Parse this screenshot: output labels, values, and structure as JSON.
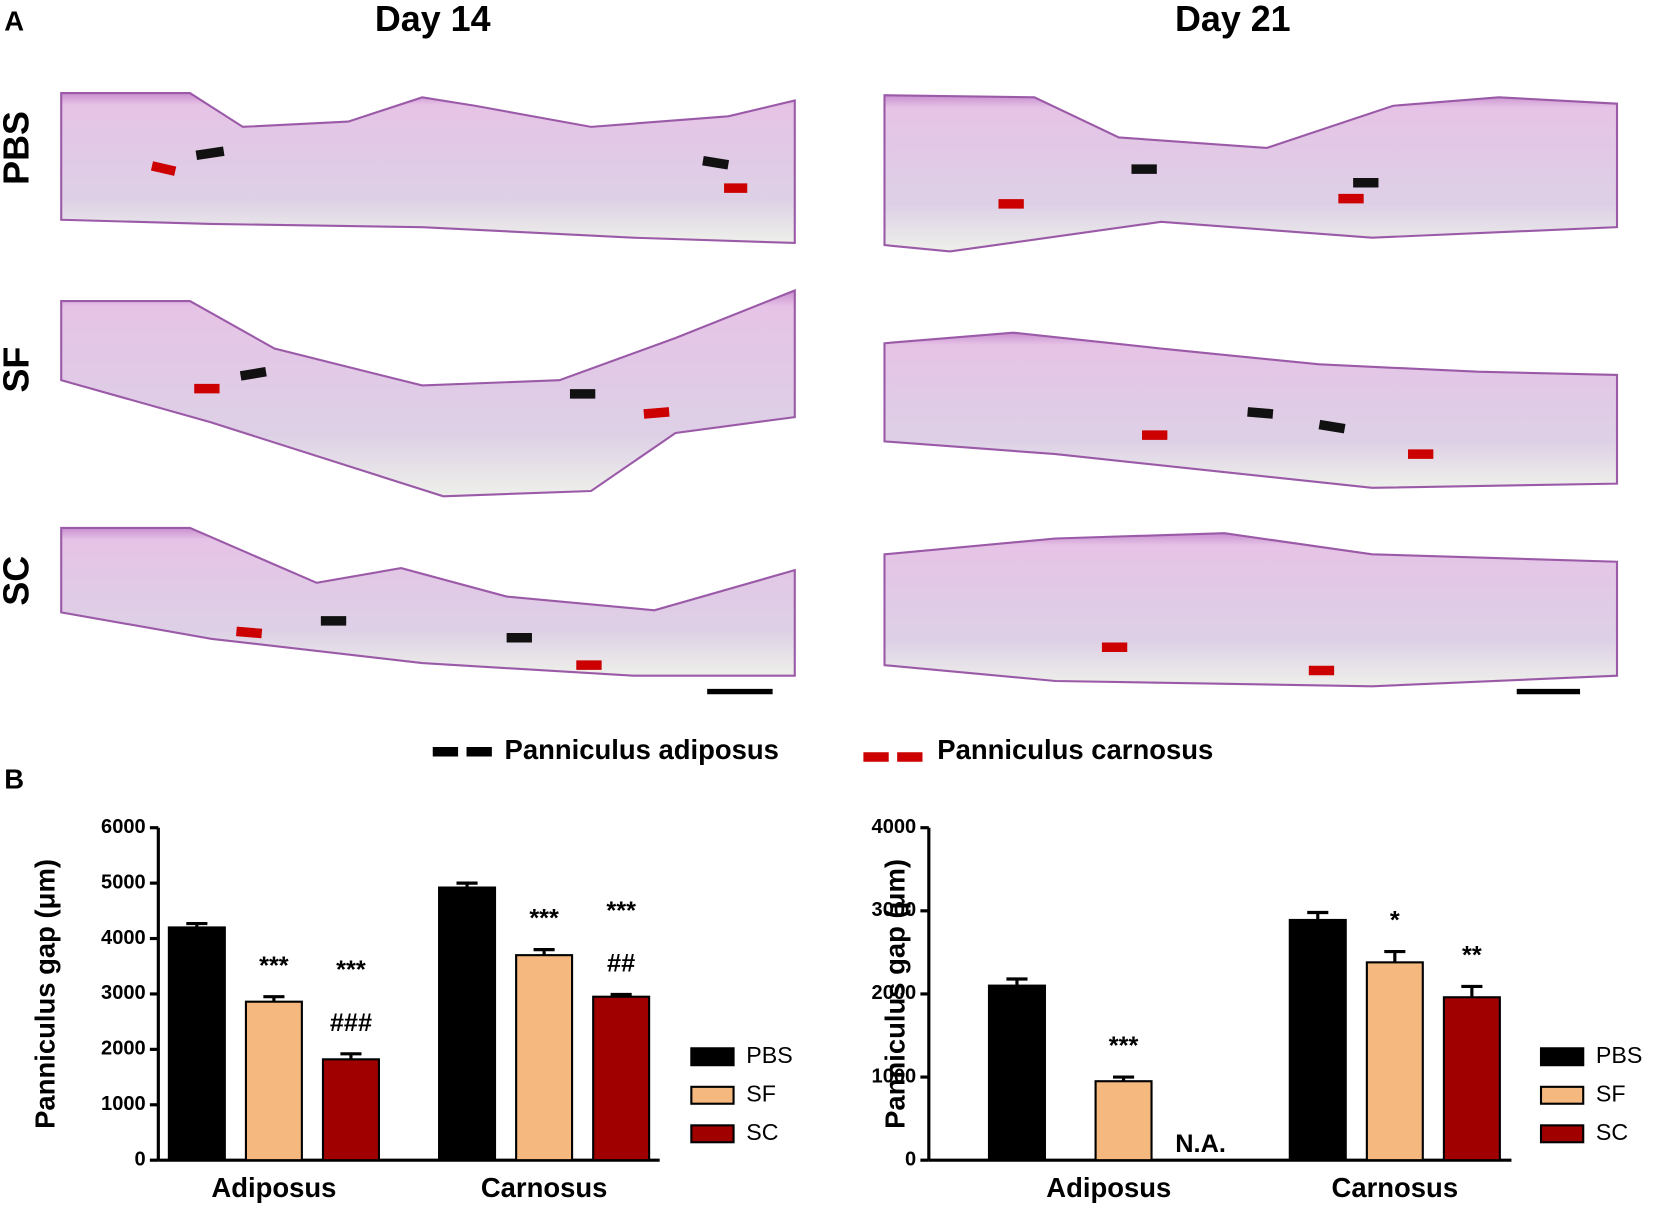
{
  "panel_labels": [
    "A",
    "B"
  ],
  "columns": [
    "Day 14",
    "Day 21"
  ],
  "rows": [
    "PBS",
    "SF",
    "SC"
  ],
  "arrow_legend": [
    "Panniculus adiposus",
    "Panniculus carnosus"
  ],
  "chart_data": [
    {
      "type": "bar",
      "ylabel": "Panniculus gap  (μm)",
      "categories": [
        "Adiposus",
        "Carnosus"
      ],
      "series": [
        {
          "name": "PBS",
          "color": "#000000",
          "values": [
            4200,
            4920
          ],
          "errors": [
            70,
            80
          ],
          "annotations": [
            [],
            []
          ]
        },
        {
          "name": "SF",
          "color": "#f5b97f",
          "values": [
            2860,
            3700
          ],
          "errors": [
            90,
            100
          ],
          "annotations": [
            [
              "***"
            ],
            [
              "***"
            ]
          ]
        },
        {
          "name": "SC",
          "color": "#a00000",
          "values": [
            1820,
            2950
          ],
          "errors": [
            100,
            40
          ],
          "annotations": [
            [
              "***",
              "###"
            ],
            [
              "***",
              "##"
            ]
          ]
        }
      ],
      "ylim": [
        0,
        6000
      ],
      "yticks": [
        0,
        1000,
        2000,
        3000,
        4000,
        5000,
        6000
      ]
    },
    {
      "type": "bar",
      "ylabel": "Panniculus gap  (μm)",
      "categories": [
        "Adiposus",
        "Carnosus"
      ],
      "series": [
        {
          "name": "PBS",
          "color": "#000000",
          "values": [
            2100,
            2890
          ],
          "errors": [
            80,
            90
          ],
          "annotations": [
            [],
            []
          ]
        },
        {
          "name": "SF",
          "color": "#f5b97f",
          "values": [
            950,
            2380
          ],
          "errors": [
            50,
            130
          ],
          "annotations": [
            [
              "***"
            ],
            [
              "*"
            ]
          ]
        },
        {
          "name": "SC",
          "color": "#a00000",
          "values": [
            null,
            1960
          ],
          "errors": [
            null,
            130
          ],
          "annotations": [
            [
              "N.A."
            ],
            [
              "**"
            ]
          ]
        }
      ],
      "ylim": [
        0,
        4000
      ],
      "yticks": [
        0,
        1000,
        2000,
        3000,
        4000
      ]
    }
  ]
}
